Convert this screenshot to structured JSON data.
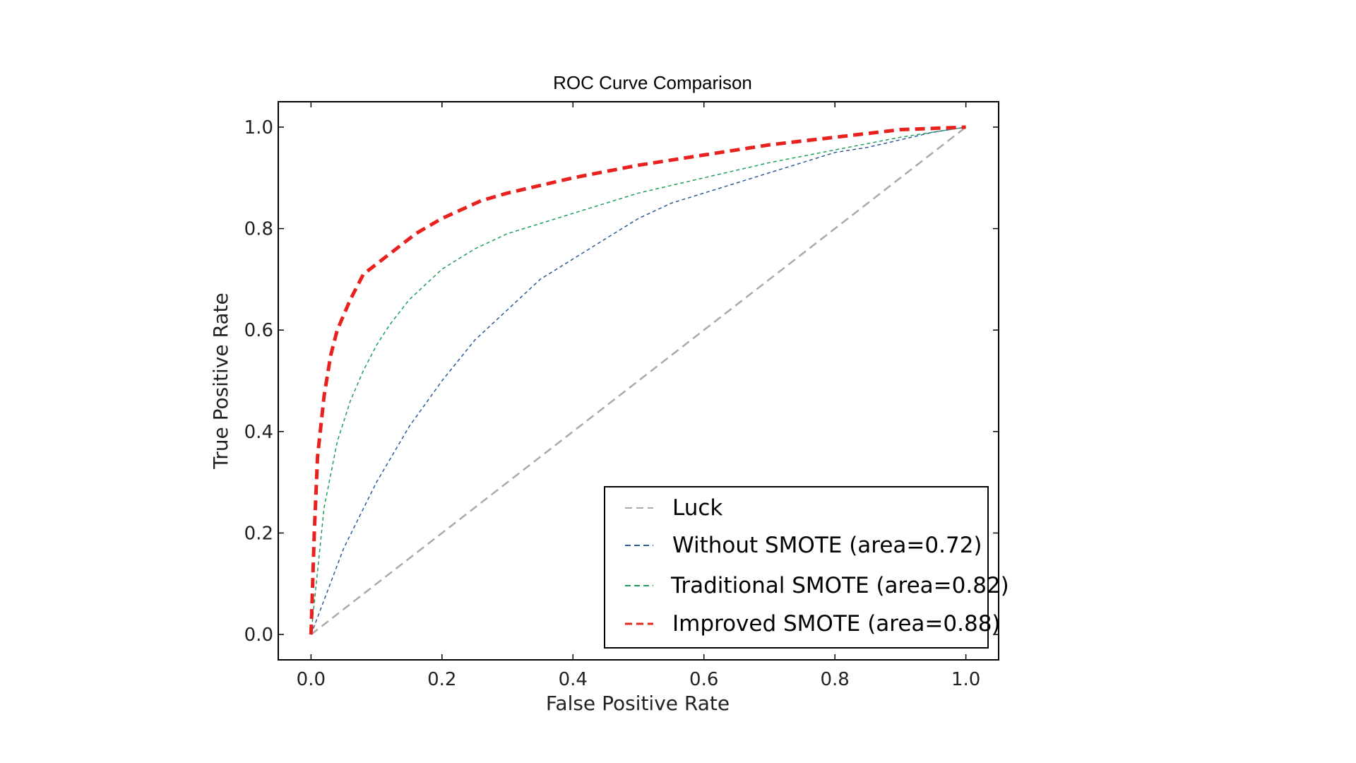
{
  "chart_data": {
    "type": "line",
    "title": "ROC Curve Comparison",
    "xlabel": "False Positive Rate",
    "ylabel": "True Positive Rate",
    "xlim": [
      -0.05,
      1.05
    ],
    "ylim": [
      -0.05,
      1.05
    ],
    "xticks": [
      "0.0",
      "0.2",
      "0.4",
      "0.6",
      "0.8",
      "1.0"
    ],
    "yticks": [
      "0.0",
      "0.2",
      "0.4",
      "0.6",
      "0.8",
      "1.0"
    ],
    "grid": false,
    "legend_position": "lower-right",
    "series": [
      {
        "name": "Luck",
        "color": "#aaaaaa",
        "style": "dashed",
        "x": [
          0.0,
          1.0
        ],
        "y": [
          0.0,
          1.0
        ]
      },
      {
        "name": "Without SMOTE (area=0.72)",
        "color": "#2d5b96",
        "style": "dashed",
        "x": [
          0.0,
          0.05,
          0.1,
          0.15,
          0.2,
          0.25,
          0.3,
          0.35,
          0.4,
          0.45,
          0.5,
          0.55,
          0.6,
          0.65,
          0.7,
          0.75,
          0.8,
          0.85,
          0.9,
          0.95,
          1.0
        ],
        "y": [
          0.0,
          0.17,
          0.3,
          0.41,
          0.5,
          0.58,
          0.64,
          0.7,
          0.74,
          0.78,
          0.82,
          0.85,
          0.87,
          0.89,
          0.91,
          0.93,
          0.95,
          0.96,
          0.975,
          0.99,
          1.0
        ]
      },
      {
        "name": "Traditional SMOTE (area=0.82)",
        "color": "#1f9e5a",
        "style": "dashed",
        "x": [
          0.0,
          0.02,
          0.04,
          0.06,
          0.08,
          0.1,
          0.12,
          0.15,
          0.2,
          0.25,
          0.3,
          0.35,
          0.4,
          0.5,
          0.6,
          0.7,
          0.8,
          0.9,
          1.0
        ],
        "y": [
          0.0,
          0.25,
          0.38,
          0.46,
          0.52,
          0.57,
          0.61,
          0.66,
          0.72,
          0.76,
          0.79,
          0.81,
          0.83,
          0.87,
          0.9,
          0.93,
          0.955,
          0.98,
          1.0
        ]
      },
      {
        "name": "Improved SMOTE (area=0.88)",
        "color": "#e8211e",
        "style": "dashed-bold",
        "x": [
          0.0,
          0.005,
          0.01,
          0.02,
          0.03,
          0.04,
          0.06,
          0.08,
          0.1,
          0.13,
          0.16,
          0.2,
          0.26,
          0.3,
          0.35,
          0.4,
          0.5,
          0.6,
          0.7,
          0.8,
          0.9,
          1.0
        ],
        "y": [
          0.0,
          0.2,
          0.35,
          0.47,
          0.55,
          0.6,
          0.66,
          0.71,
          0.73,
          0.76,
          0.79,
          0.82,
          0.855,
          0.87,
          0.885,
          0.9,
          0.925,
          0.945,
          0.965,
          0.98,
          0.995,
          1.0
        ]
      }
    ]
  }
}
